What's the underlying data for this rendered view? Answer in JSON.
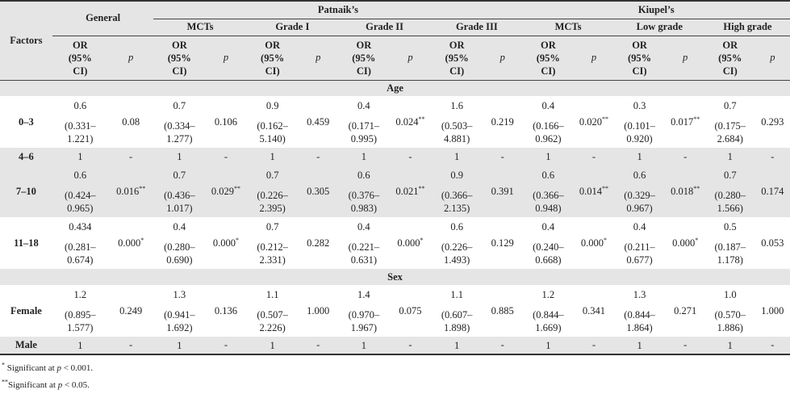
{
  "header": {
    "factors": "Factors",
    "general": "General",
    "patnaik": "Patnaik’s",
    "kiupel": "Kiupel’s",
    "sub": [
      "MCTs",
      "Grade I",
      "Grade II",
      "Grade III",
      "MCTs",
      "Low grade",
      "High grade"
    ],
    "or_line1": "OR",
    "or_line2": "(95%",
    "or_line3": "CI)",
    "p": "p"
  },
  "sections": {
    "age": "Age",
    "sex": "Sex"
  },
  "rows": [
    {
      "factor": "0–3",
      "shade": false,
      "cells": [
        [
          "0.6",
          "(0.331–",
          "1.221)",
          "0.08"
        ],
        [
          "0.7",
          "(0.334–",
          "1.277)",
          "0.106"
        ],
        [
          "0.9",
          "(0.162–",
          "5.140)",
          "0.459"
        ],
        [
          "0.4",
          "(0.171–",
          "0.995)",
          "0.024**"
        ],
        [
          "1.6",
          "(0.503–",
          "4.881)",
          "0.219"
        ],
        [
          "0.4",
          "(0.166–",
          "0.962)",
          "0.020**"
        ],
        [
          "0.3",
          "(0.101–",
          "0.920)",
          "0.017**"
        ],
        [
          "0.7",
          "(0.175–",
          "2.684)",
          "0.293"
        ]
      ]
    },
    {
      "factor": "4–6",
      "shade": true,
      "cells": [
        [
          "1",
          "",
          "",
          "-"
        ],
        [
          "1",
          "",
          "",
          "-"
        ],
        [
          "1",
          "",
          "",
          "-"
        ],
        [
          "1",
          "",
          "",
          "-"
        ],
        [
          "1",
          "",
          "",
          "-"
        ],
        [
          "1",
          "",
          "",
          "-"
        ],
        [
          "1",
          "",
          "",
          "-"
        ],
        [
          "1",
          "",
          "",
          "-"
        ]
      ]
    },
    {
      "factor": "7–10",
      "shade": true,
      "cells": [
        [
          "0.6",
          "(0.424–",
          "0.965)",
          "0.016**"
        ],
        [
          "0.7",
          "(0.436–",
          "1.017)",
          "0.029**"
        ],
        [
          "0.7",
          "(0.226–",
          "2.395)",
          "0.305"
        ],
        [
          "0.6",
          "(0.376–",
          "0.983)",
          "0.021**"
        ],
        [
          "0.9",
          "(0.366–",
          "2.135)",
          "0.391"
        ],
        [
          "0.6",
          "(0.366–",
          "0.948)",
          "0.014**"
        ],
        [
          "0.6",
          "(0.329–",
          "0.967)",
          "0.018**"
        ],
        [
          "0.7",
          "(0.280–",
          "1.566)",
          "0.174"
        ]
      ]
    },
    {
      "factor": "11–18",
      "shade": false,
      "cells": [
        [
          "0.434",
          "(0.281–",
          "0.674)",
          "0.000*"
        ],
        [
          "0.4",
          "(0.280–",
          "0.690)",
          "0.000*"
        ],
        [
          "0.7",
          "(0.212–",
          "2.331)",
          "0.282"
        ],
        [
          "0.4",
          "(0.221–",
          "0.631)",
          "0.000*"
        ],
        [
          "0.6",
          "(0.226–",
          "1.493)",
          "0.129"
        ],
        [
          "0.4",
          "(0.240–",
          "0.668)",
          "0.000*"
        ],
        [
          "0.4",
          "(0.211–",
          "0.677)",
          "0.000*"
        ],
        [
          "0.5",
          "(0.187–",
          "1.178)",
          "0.053"
        ]
      ]
    },
    {
      "factor": "Female",
      "shade": false,
      "cells": [
        [
          "1.2",
          "(0.895–",
          "1.577)",
          "0.249"
        ],
        [
          "1.3",
          "(0.941–",
          "1.692)",
          "0.136"
        ],
        [
          "1.1",
          "(0.507–",
          "2.226)",
          "1.000"
        ],
        [
          "1.4",
          "(0.970–",
          "1.967)",
          "0.075"
        ],
        [
          "1.1",
          "(0.607–",
          "1.898)",
          "0.885"
        ],
        [
          "1.2",
          "(0.844–",
          "1.669)",
          "0.341"
        ],
        [
          "1.3",
          "(0.844–",
          "1.864)",
          "0.271"
        ],
        [
          "1.0",
          "(0.570–",
          "1.886)",
          "1.000"
        ]
      ]
    },
    {
      "factor": "Male",
      "shade": true,
      "cells": [
        [
          "1",
          "",
          "",
          "-"
        ],
        [
          "1",
          "",
          "",
          "-"
        ],
        [
          "1",
          "",
          "",
          "-"
        ],
        [
          "1",
          "",
          "",
          "-"
        ],
        [
          "1",
          "",
          "",
          "-"
        ],
        [
          "1",
          "",
          "",
          "-"
        ],
        [
          "1",
          "",
          "",
          "-"
        ],
        [
          "1",
          "",
          "",
          "-"
        ]
      ]
    }
  ],
  "footnotes": [
    {
      "mark": "*",
      "text": " Significant at ",
      "p": "p",
      "rest": " < 0.001."
    },
    {
      "mark": "**",
      "text": "Significant at ",
      "p": "p",
      "rest": " < 0.05."
    }
  ]
}
